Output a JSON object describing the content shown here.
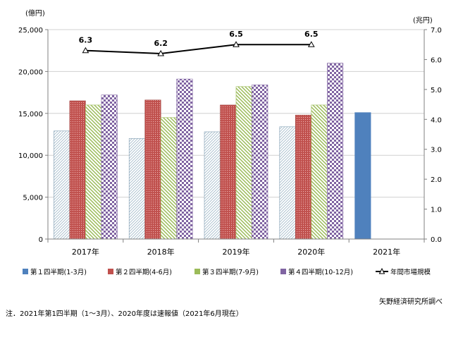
{
  "chart_data": {
    "type": "bar",
    "categories": [
      "2017年",
      "2018年",
      "2019年",
      "2020年",
      "2021年"
    ],
    "series": [
      {
        "name": "第１四半期(1-3月)",
        "values": [
          12900,
          12000,
          12800,
          13400,
          15100
        ],
        "pattern": "q1"
      },
      {
        "name": "第２四半期(4-6月)",
        "values": [
          16500,
          16600,
          16000,
          14800,
          null
        ],
        "pattern": "q2"
      },
      {
        "name": "第３四半期(7-9月)",
        "values": [
          16000,
          14500,
          18200,
          16000,
          null
        ],
        "pattern": "q3"
      },
      {
        "name": "第４四半期(10-12月)",
        "values": [
          17200,
          19100,
          18400,
          21000,
          null
        ],
        "pattern": "q4"
      }
    ],
    "line": {
      "name": "年間市場規模",
      "values": [
        6.3,
        6.2,
        6.5,
        6.5,
        null
      ],
      "labels": [
        "6.3",
        "6.2",
        "6.5",
        "6.5",
        ""
      ]
    },
    "y_left": {
      "unit": "(億円)",
      "ylim": [
        0,
        25000
      ],
      "ticks": [
        "0",
        "5,000",
        "10,000",
        "15,000",
        "20,000",
        "25,000"
      ]
    },
    "y_right": {
      "unit": "(兆円)",
      "ylim": [
        0,
        7.0
      ],
      "ticks": [
        "0.0",
        "1.0",
        "2.0",
        "3.0",
        "4.0",
        "5.0",
        "6.0",
        "7.0"
      ]
    },
    "legend_position": "bottom",
    "grid": true
  },
  "source": "矢野経済研究所調べ",
  "footnote": "注．2021年第1四半期（1～3月）、2020年度は速報値（2021年6月現在）",
  "colors": {
    "q1_fill": "#4f81bd",
    "q1_pattern_line": "#a0b8c8",
    "q2_fill": "#c0504d",
    "q2_dot": "#f2b9b8",
    "q3_line": "#9bbb59",
    "q4_dark": "#8064a2",
    "grid": "#d0d0d0",
    "axis": "#808080",
    "line": "#000000"
  }
}
